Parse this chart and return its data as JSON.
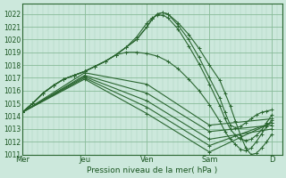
{
  "title": "",
  "xlabel": "Pression niveau de la mer( hPa )",
  "bg_color": "#cce8dc",
  "grid_major_color": "#88bb99",
  "grid_minor_color": "#aad4bb",
  "line_color": "#2a6630",
  "ylim": [
    1011.0,
    1022.8
  ],
  "yticks": [
    1011,
    1012,
    1013,
    1014,
    1015,
    1016,
    1017,
    1018,
    1019,
    1020,
    1021,
    1022
  ],
  "day_labels": [
    "Mer",
    "Jeu",
    "Ven",
    "Sam",
    "D"
  ],
  "day_positions": [
    0,
    48,
    96,
    144,
    192
  ],
  "xlim": [
    0,
    200
  ],
  "n_steps": 192,
  "series": [
    {
      "points": [
        [
          0,
          1014.3
        ],
        [
          8,
          1015.0
        ],
        [
          16,
          1015.8
        ],
        [
          24,
          1016.4
        ],
        [
          32,
          1016.9
        ],
        [
          40,
          1017.2
        ],
        [
          48,
          1017.5
        ],
        [
          56,
          1017.9
        ],
        [
          64,
          1018.3
        ],
        [
          72,
          1018.8
        ],
        [
          80,
          1019.4
        ],
        [
          88,
          1020.0
        ],
        [
          96,
          1021.0
        ],
        [
          100,
          1021.6
        ],
        [
          104,
          1022.0
        ],
        [
          108,
          1022.1
        ],
        [
          112,
          1022.0
        ],
        [
          120,
          1021.3
        ],
        [
          128,
          1020.4
        ],
        [
          136,
          1019.3
        ],
        [
          144,
          1018.0
        ],
        [
          152,
          1016.8
        ],
        [
          156,
          1015.8
        ],
        [
          160,
          1014.8
        ],
        [
          164,
          1013.6
        ],
        [
          168,
          1012.5
        ],
        [
          172,
          1011.5
        ],
        [
          176,
          1011.0
        ],
        [
          180,
          1011.1
        ],
        [
          184,
          1011.5
        ],
        [
          188,
          1012.0
        ],
        [
          192,
          1012.6
        ]
      ]
    },
    {
      "points": [
        [
          0,
          1014.3
        ],
        [
          8,
          1015.0
        ],
        [
          16,
          1015.8
        ],
        [
          24,
          1016.4
        ],
        [
          32,
          1016.9
        ],
        [
          40,
          1017.2
        ],
        [
          48,
          1017.5
        ],
        [
          56,
          1017.9
        ],
        [
          64,
          1018.3
        ],
        [
          72,
          1018.8
        ],
        [
          80,
          1019.4
        ],
        [
          88,
          1020.0
        ],
        [
          96,
          1021.0
        ],
        [
          100,
          1021.6
        ],
        [
          104,
          1022.0
        ],
        [
          108,
          1022.1
        ],
        [
          112,
          1022.0
        ],
        [
          120,
          1021.1
        ],
        [
          128,
          1020.0
        ],
        [
          136,
          1018.6
        ],
        [
          144,
          1017.0
        ],
        [
          152,
          1015.4
        ],
        [
          156,
          1014.3
        ],
        [
          160,
          1013.3
        ],
        [
          164,
          1013.1
        ],
        [
          168,
          1013.2
        ],
        [
          172,
          1013.5
        ],
        [
          176,
          1013.8
        ],
        [
          180,
          1014.1
        ],
        [
          184,
          1014.3
        ],
        [
          188,
          1014.4
        ],
        [
          192,
          1014.5
        ]
      ]
    },
    {
      "points": [
        [
          0,
          1014.3
        ],
        [
          8,
          1015.0
        ],
        [
          16,
          1015.8
        ],
        [
          24,
          1016.4
        ],
        [
          32,
          1016.9
        ],
        [
          40,
          1017.2
        ],
        [
          48,
          1017.5
        ],
        [
          56,
          1017.9
        ],
        [
          64,
          1018.3
        ],
        [
          72,
          1018.8
        ],
        [
          80,
          1019.4
        ],
        [
          88,
          1020.2
        ],
        [
          96,
          1021.3
        ],
        [
          100,
          1021.7
        ],
        [
          104,
          1021.9
        ],
        [
          108,
          1021.9
        ],
        [
          112,
          1021.7
        ],
        [
          120,
          1020.8
        ],
        [
          128,
          1019.5
        ],
        [
          136,
          1018.1
        ],
        [
          144,
          1016.5
        ],
        [
          152,
          1014.8
        ],
        [
          156,
          1013.8
        ],
        [
          160,
          1013.0
        ],
        [
          164,
          1012.5
        ],
        [
          168,
          1012.2
        ],
        [
          172,
          1012.1
        ],
        [
          176,
          1012.2
        ],
        [
          180,
          1012.5
        ],
        [
          184,
          1012.9
        ],
        [
          188,
          1013.5
        ],
        [
          192,
          1014.1
        ]
      ]
    },
    {
      "points": [
        [
          0,
          1014.3
        ],
        [
          8,
          1015.0
        ],
        [
          16,
          1015.8
        ],
        [
          24,
          1016.4
        ],
        [
          32,
          1016.9
        ],
        [
          40,
          1017.2
        ],
        [
          48,
          1017.5
        ],
        [
          56,
          1017.9
        ],
        [
          64,
          1018.3
        ],
        [
          72,
          1018.8
        ],
        [
          80,
          1019.0
        ],
        [
          88,
          1019.0
        ],
        [
          96,
          1018.9
        ],
        [
          104,
          1018.7
        ],
        [
          112,
          1018.3
        ],
        [
          120,
          1017.7
        ],
        [
          128,
          1016.9
        ],
        [
          136,
          1016.0
        ],
        [
          144,
          1014.9
        ],
        [
          152,
          1013.6
        ],
        [
          156,
          1012.8
        ],
        [
          160,
          1012.2
        ],
        [
          164,
          1011.8
        ],
        [
          168,
          1011.4
        ],
        [
          172,
          1011.3
        ],
        [
          176,
          1011.5
        ],
        [
          180,
          1012.0
        ],
        [
          184,
          1012.6
        ],
        [
          188,
          1013.2
        ],
        [
          192,
          1013.7
        ]
      ]
    },
    {
      "points": [
        [
          0,
          1014.3
        ],
        [
          48,
          1017.4
        ],
        [
          96,
          1016.5
        ],
        [
          144,
          1013.3
        ],
        [
          192,
          1013.8
        ]
      ]
    },
    {
      "points": [
        [
          0,
          1014.3
        ],
        [
          48,
          1017.2
        ],
        [
          96,
          1015.8
        ],
        [
          144,
          1012.8
        ],
        [
          192,
          1013.3
        ]
      ]
    },
    {
      "points": [
        [
          0,
          1014.3
        ],
        [
          48,
          1017.1
        ],
        [
          96,
          1015.2
        ],
        [
          144,
          1012.2
        ],
        [
          192,
          1013.0
        ]
      ]
    },
    {
      "points": [
        [
          0,
          1014.3
        ],
        [
          48,
          1017.0
        ],
        [
          96,
          1014.7
        ],
        [
          144,
          1011.7
        ],
        [
          192,
          1013.5
        ]
      ]
    },
    {
      "points": [
        [
          0,
          1014.3
        ],
        [
          48,
          1016.9
        ],
        [
          96,
          1014.2
        ],
        [
          144,
          1011.2
        ],
        [
          192,
          1013.5
        ]
      ]
    }
  ]
}
